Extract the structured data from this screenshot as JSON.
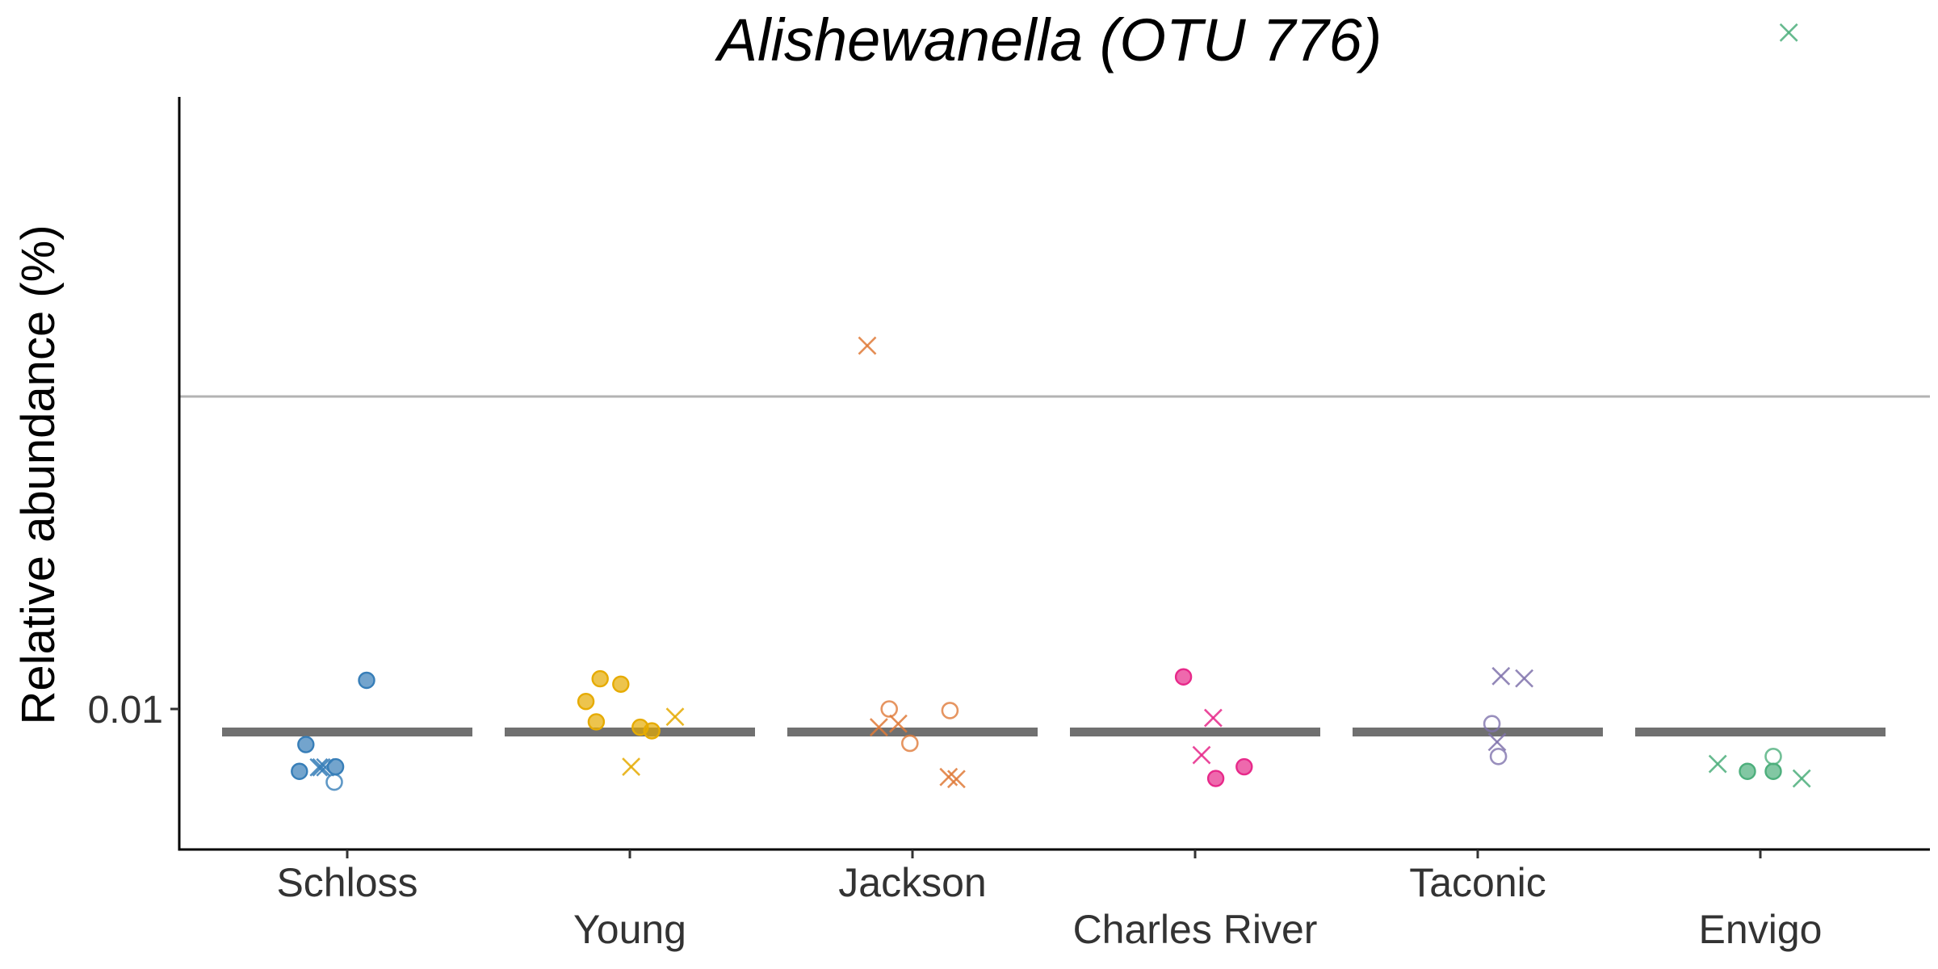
{
  "chart_data": {
    "type": "scatter",
    "title": "Alishewanella (OTU 776)",
    "ylabel": "Relative abundance (%)",
    "xlabel": "",
    "y_scale": "log10",
    "y_ticks": [
      {
        "value": 0.01,
        "label": "0.01"
      }
    ],
    "ylim": [
      0.0062,
      0.3
    ],
    "reference_line": {
      "value": 0.0417,
      "color": "#b3b3b3"
    },
    "grid": false,
    "legend": "none",
    "categories": [
      {
        "name": "Schloss",
        "color": "#377eb8",
        "median": 0.009,
        "points": [
          {
            "x": 0.15,
            "y": 0.0114,
            "shape": "filled-circle"
          },
          {
            "x": -0.32,
            "y": 0.0085,
            "shape": "filled-circle"
          },
          {
            "x": -0.37,
            "y": 0.00752,
            "shape": "filled-circle"
          },
          {
            "x": -0.22,
            "y": 0.00766,
            "shape": "cross"
          },
          {
            "x": -0.2,
            "y": 0.00766,
            "shape": "cross"
          },
          {
            "x": -0.17,
            "y": 0.00766,
            "shape": "cross"
          },
          {
            "x": -0.09,
            "y": 0.00768,
            "shape": "filled-circle"
          },
          {
            "x": -0.1,
            "y": 0.00716,
            "shape": "open-circle"
          }
        ]
      },
      {
        "name": "Young",
        "color": "#e6ab02",
        "median": 0.009,
        "points": [
          {
            "x": -0.34,
            "y": 0.01035,
            "shape": "filled-circle"
          },
          {
            "x": -0.23,
            "y": 0.01148,
            "shape": "filled-circle"
          },
          {
            "x": -0.26,
            "y": 0.00943,
            "shape": "filled-circle"
          },
          {
            "x": -0.07,
            "y": 0.0112,
            "shape": "filled-circle"
          },
          {
            "x": 0.08,
            "y": 0.0092,
            "shape": "filled-circle"
          },
          {
            "x": 0.17,
            "y": 0.00905,
            "shape": "filled-circle"
          },
          {
            "x": 0.35,
            "y": 0.00965,
            "shape": "cross"
          },
          {
            "x": 0.01,
            "y": 0.00768,
            "shape": "cross"
          }
        ]
      },
      {
        "name": "Jackson",
        "color": "#e07b39",
        "median": 0.009,
        "points": [
          {
            "x": -0.35,
            "y": 0.0526,
            "shape": "cross"
          },
          {
            "x": -0.26,
            "y": 0.0092,
            "shape": "cross"
          },
          {
            "x": -0.18,
            "y": 0.01,
            "shape": "open-circle"
          },
          {
            "x": -0.11,
            "y": 0.00935,
            "shape": "cross"
          },
          {
            "x": -0.02,
            "y": 0.00855,
            "shape": "open-circle"
          },
          {
            "x": 0.29,
            "y": 0.00993,
            "shape": "open-circle"
          },
          {
            "x": 0.28,
            "y": 0.00733,
            "shape": "cross"
          },
          {
            "x": 0.34,
            "y": 0.00726,
            "shape": "cross"
          }
        ]
      },
      {
        "name": "Charles River",
        "color": "#e7298a",
        "median": 0.009,
        "points": [
          {
            "x": -0.09,
            "y": 0.01158,
            "shape": "filled-circle"
          },
          {
            "x": 0.14,
            "y": 0.0096,
            "shape": "cross"
          },
          {
            "x": 0.05,
            "y": 0.0081,
            "shape": "cross"
          },
          {
            "x": 0.16,
            "y": 0.00728,
            "shape": "filled-circle"
          },
          {
            "x": 0.38,
            "y": 0.00768,
            "shape": "filled-circle"
          }
        ]
      },
      {
        "name": "Taconic",
        "color": "#8073ac",
        "median": 0.009,
        "points": [
          {
            "x": 0.18,
            "y": 0.01162,
            "shape": "cross"
          },
          {
            "x": 0.36,
            "y": 0.0115,
            "shape": "cross"
          },
          {
            "x": 0.11,
            "y": 0.00935,
            "shape": "open-circle"
          },
          {
            "x": 0.15,
            "y": 0.0086,
            "shape": "cross"
          },
          {
            "x": 0.16,
            "y": 0.00805,
            "shape": "open-circle"
          }
        ]
      },
      {
        "name": "Envigo",
        "color": "#4daf7c",
        "median": 0.009,
        "points": [
          {
            "x": 0.22,
            "y": 0.22,
            "shape": "cross"
          },
          {
            "x": -0.33,
            "y": 0.00778,
            "shape": "cross"
          },
          {
            "x": -0.1,
            "y": 0.00752,
            "shape": "filled-circle"
          },
          {
            "x": 0.1,
            "y": 0.00752,
            "shape": "filled-circle"
          },
          {
            "x": 0.1,
            "y": 0.00805,
            "shape": "open-circle"
          },
          {
            "x": 0.32,
            "y": 0.00728,
            "shape": "cross"
          }
        ]
      }
    ]
  }
}
